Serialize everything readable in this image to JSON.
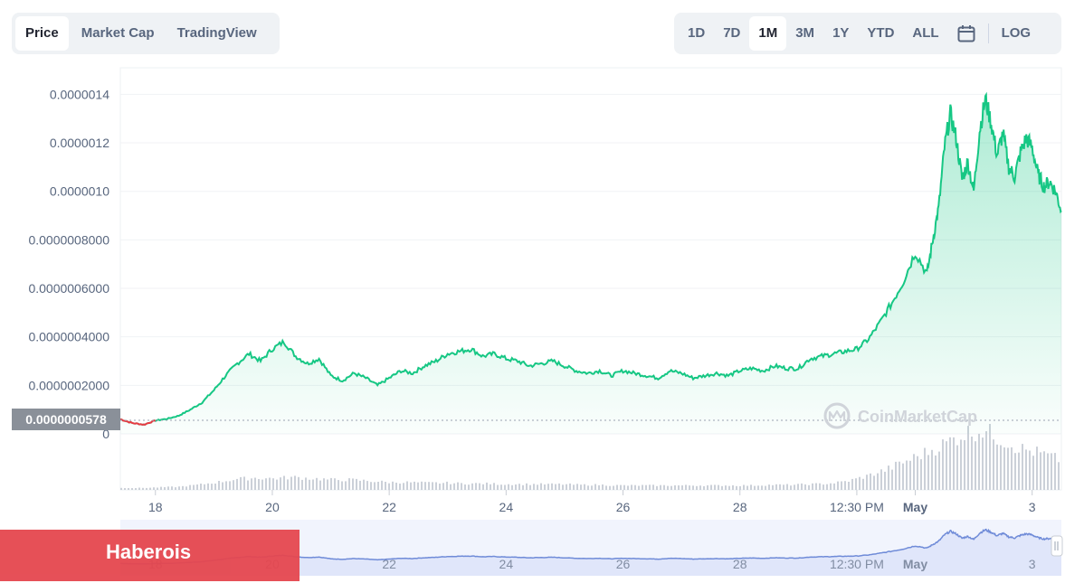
{
  "tabs": [
    {
      "label": "Price",
      "active": true
    },
    {
      "label": "Market Cap",
      "active": false
    },
    {
      "label": "TradingView",
      "active": false
    }
  ],
  "ranges": [
    {
      "label": "1D",
      "active": false
    },
    {
      "label": "7D",
      "active": false
    },
    {
      "label": "1M",
      "active": true
    },
    {
      "label": "3M",
      "active": false
    },
    {
      "label": "1Y",
      "active": false
    },
    {
      "label": "YTD",
      "active": false
    },
    {
      "label": "ALL",
      "active": false
    }
  ],
  "calendar_icon": "calendar-icon",
  "log_label": "LOG",
  "current_price_label": "0.0000000578",
  "watermark": "CoinMarketCap",
  "banner_text": "Haberois",
  "colors": {
    "line": "#16c784",
    "line_down": "#ea3943",
    "fill_top": "#16c784",
    "volume": "#c9cdd4",
    "nav_line": "#6f8bd8",
    "nav_fill": "#e6ebfb",
    "banner": "#e5474f"
  },
  "chart_data": {
    "type": "line",
    "y_tick_labels": [
      "0",
      "0.0000002000",
      "0.0000004000",
      "0.0000006000",
      "0.0000008000",
      "0.0000010",
      "0.0000012",
      "0.0000014"
    ],
    "y_ticks": [
      0,
      2e-07,
      4e-07,
      6e-07,
      8e-07,
      1e-06,
      1.2e-06,
      1.4e-06
    ],
    "ylim": [
      0,
      1.42e-06
    ],
    "x_tick_labels": [
      "18",
      "20",
      "22",
      "24",
      "26",
      "28",
      "12:30 PM",
      "May",
      "3"
    ],
    "x_tick_days": [
      18,
      20,
      22,
      24,
      26,
      28,
      30,
      31,
      33
    ],
    "x_tick_bold": [
      false,
      false,
      false,
      false,
      false,
      false,
      false,
      true,
      false
    ],
    "xlim_days": [
      17.4,
      33.5
    ],
    "price_series": {
      "x_days": [
        17.4,
        17.6,
        17.8,
        18.0,
        18.2,
        18.4,
        18.6,
        18.8,
        19.0,
        19.2,
        19.4,
        19.6,
        19.8,
        20.0,
        20.2,
        20.4,
        20.6,
        20.8,
        21.0,
        21.2,
        21.4,
        21.6,
        21.8,
        22.0,
        22.2,
        22.4,
        22.6,
        22.8,
        23.0,
        23.2,
        23.4,
        23.6,
        23.8,
        24.0,
        24.2,
        24.4,
        24.6,
        24.8,
        25.0,
        25.2,
        25.4,
        25.6,
        25.8,
        26.0,
        26.2,
        26.4,
        26.6,
        26.8,
        27.0,
        27.2,
        27.4,
        27.6,
        27.8,
        28.0,
        28.2,
        28.4,
        28.6,
        28.8,
        29.0,
        29.2,
        29.4,
        29.6,
        29.8,
        30.0,
        30.2,
        30.4,
        30.6,
        30.8,
        31.0,
        31.2,
        31.3,
        31.4,
        31.5,
        31.6,
        31.7,
        31.8,
        31.9,
        32.0,
        32.1,
        32.2,
        32.3,
        32.4,
        32.5,
        32.6,
        32.7,
        32.8,
        32.9,
        33.0,
        33.1,
        33.2,
        33.3,
        33.4,
        33.5
      ],
      "values": [
        6e-08,
        4.5e-08,
        3.8e-08,
        5.5e-08,
        6.2e-08,
        7.5e-08,
        1e-07,
        1.3e-07,
        1.8e-07,
        2.4e-07,
        2.9e-07,
        3.3e-07,
        3e-07,
        3.5e-07,
        3.8e-07,
        3.2e-07,
        2.9e-07,
        3.1e-07,
        2.4e-07,
        2.2e-07,
        2.5e-07,
        2.3e-07,
        2e-07,
        2.3e-07,
        2.6e-07,
        2.5e-07,
        2.8e-07,
        3e-07,
        3.3e-07,
        3.4e-07,
        3.5e-07,
        3.2e-07,
        3.3e-07,
        3.1e-07,
        3e-07,
        2.8e-07,
        2.9e-07,
        3e-07,
        2.8e-07,
        2.6e-07,
        2.5e-07,
        2.6e-07,
        2.4e-07,
        2.6e-07,
        2.5e-07,
        2.4e-07,
        2.3e-07,
        2.6e-07,
        2.5e-07,
        2.3e-07,
        2.4e-07,
        2.5e-07,
        2.4e-07,
        2.6e-07,
        2.7e-07,
        2.6e-07,
        2.8e-07,
        2.7e-07,
        2.7e-07,
        3.1e-07,
        3.2e-07,
        3.3e-07,
        3.4e-07,
        3.5e-07,
        3.9e-07,
        4.6e-07,
        5.4e-07,
        6.3e-07,
        7.5e-07,
        6.6e-07,
        8e-07,
        9.3e-07,
        1.18e-06,
        1.32e-06,
        1.22e-06,
        1.05e-06,
        1.12e-06,
        1e-06,
        1.25e-06,
        1.38e-06,
        1.28e-06,
        1.15e-06,
        1.24e-06,
        1.1e-06,
        1.06e-06,
        1.16e-06,
        1.22e-06,
        1.18e-06,
        1.07e-06,
        1.02e-06,
        1.04e-06,
        1e-06,
        9.2e-07
      ]
    },
    "volume_profile": [
      0.03,
      0.03,
      0.04,
      0.05,
      0.08,
      0.12,
      0.17,
      0.19,
      0.18,
      0.2,
      0.18,
      0.16,
      0.16,
      0.14,
      0.12,
      0.12,
      0.11,
      0.11,
      0.1,
      0.1,
      0.09,
      0.09,
      0.09,
      0.09,
      0.08,
      0.08,
      0.07,
      0.07,
      0.07,
      0.07,
      0.07,
      0.07,
      0.07,
      0.07,
      0.08,
      0.08,
      0.09,
      0.1,
      0.14,
      0.22,
      0.32,
      0.45,
      0.58,
      0.72,
      0.88,
      0.95,
      0.8,
      0.65,
      0.58,
      0.48
    ]
  }
}
